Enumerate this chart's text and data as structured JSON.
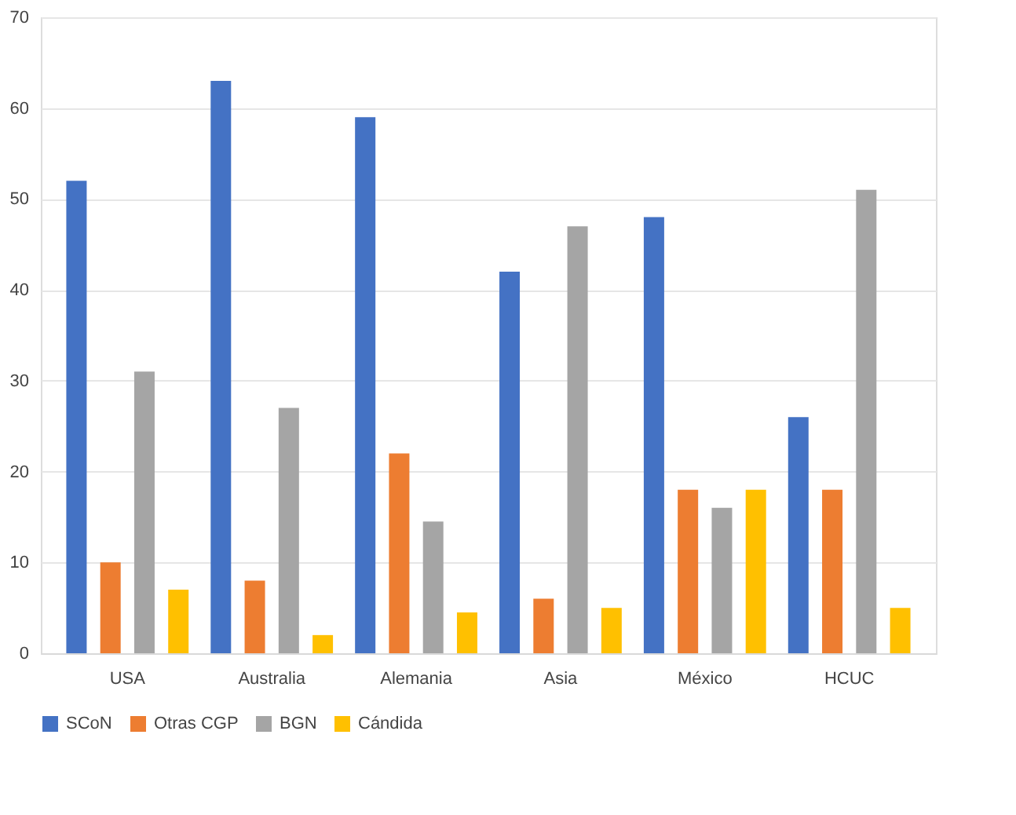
{
  "chart_data": {
    "type": "bar",
    "categories": [
      "USA",
      "Australia",
      "Alemania",
      "Asia",
      "México",
      "HCUC"
    ],
    "series": [
      {
        "name": "SCoN",
        "color": "#4472c4",
        "values": [
          52,
          63,
          59,
          42,
          48,
          26
        ]
      },
      {
        "name": "Otras CGP",
        "color": "#ed7d31",
        "values": [
          10,
          8,
          22,
          6,
          18,
          18
        ]
      },
      {
        "name": "BGN",
        "color": "#a5a5a5",
        "values": [
          31,
          27,
          14.5,
          47,
          16,
          51
        ]
      },
      {
        "name": "Cándida",
        "color": "#ffc000",
        "values": [
          7,
          2,
          4.5,
          5,
          18,
          5
        ]
      }
    ],
    "ylim": [
      0,
      70
    ],
    "yticks": [
      0,
      10,
      20,
      30,
      40,
      50,
      60,
      70
    ],
    "grid": "y",
    "legend": "bottom"
  }
}
